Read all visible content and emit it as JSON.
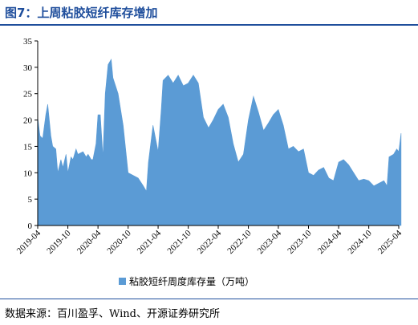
{
  "title": "图7：上周粘胶短纤库存增加",
  "source": "数据来源：百川盈孚、Wind、开源证券研究所",
  "colors": {
    "accent": "#1f4e9c",
    "area": "#5b9bd5",
    "axis": "#000000"
  },
  "chart_data": {
    "type": "area",
    "title": "图7：上周粘胶短纤库存增加",
    "xlabel": "",
    "ylabel": "",
    "ylim": [
      0,
      35
    ],
    "yticks": [
      "0",
      "5",
      "10",
      "15",
      "20",
      "25",
      "30",
      "35"
    ],
    "xticks": [
      "2019-04",
      "2019-10",
      "2020-04",
      "2020-10",
      "2021-04",
      "2021-10",
      "2022-04",
      "2022-10",
      "2023-04",
      "2023-10",
      "2024-04",
      "2024-10",
      "2025-04"
    ],
    "xlim": [
      "2019-04",
      "2025-04"
    ],
    "grid": false,
    "legend": "bottom",
    "series": [
      {
        "name": "粘胶短纤周度库存量（万吨）",
        "points": [
          [
            "2019-04",
            20.5
          ],
          [
            "2019-04-15",
            17.0
          ],
          [
            "2019-05",
            16.5
          ],
          [
            "2019-05-20",
            21.0
          ],
          [
            "2019-06",
            23.0
          ],
          [
            "2019-06-20",
            17.0
          ],
          [
            "2019-07",
            15.0
          ],
          [
            "2019-07-20",
            14.5
          ],
          [
            "2019-08",
            10.0
          ],
          [
            "2019-08-20",
            12.5
          ],
          [
            "2019-09",
            11.0
          ],
          [
            "2019-09-20",
            13.5
          ],
          [
            "2019-10",
            10.0
          ],
          [
            "2019-10-20",
            13.0
          ],
          [
            "2019-11",
            12.5
          ],
          [
            "2019-11-20",
            14.5
          ],
          [
            "2019-12",
            13.5
          ],
          [
            "2020-01",
            14.0
          ],
          [
            "2020-01-20",
            13.0
          ],
          [
            "2020-02",
            13.5
          ],
          [
            "2020-02-20",
            12.5
          ],
          [
            "2020-03",
            12.5
          ],
          [
            "2020-03-20",
            15.5
          ],
          [
            "2020-04",
            21.0
          ],
          [
            "2020-04-15",
            21.0
          ],
          [
            "2020-05",
            13.0
          ],
          [
            "2020-05-15",
            25.0
          ],
          [
            "2020-06",
            30.5
          ],
          [
            "2020-06-20",
            31.5
          ],
          [
            "2020-07",
            28.0
          ],
          [
            "2020-08",
            25.0
          ],
          [
            "2020-09",
            19.0
          ],
          [
            "2020-10",
            10.0
          ],
          [
            "2020-11",
            9.5
          ],
          [
            "2020-12",
            9.0
          ],
          [
            "2021-01",
            7.5
          ],
          [
            "2021-01-20",
            6.5
          ],
          [
            "2021-02",
            12.0
          ],
          [
            "2021-03",
            19.0
          ],
          [
            "2021-04",
            14.0
          ],
          [
            "2021-04-20",
            22.0
          ],
          [
            "2021-05",
            27.5
          ],
          [
            "2021-06",
            28.5
          ],
          [
            "2021-07",
            27.0
          ],
          [
            "2021-08",
            28.5
          ],
          [
            "2021-09",
            26.5
          ],
          [
            "2021-10",
            27.0
          ],
          [
            "2021-11",
            28.5
          ],
          [
            "2021-12",
            27.0
          ],
          [
            "2022-01",
            20.5
          ],
          [
            "2022-02",
            18.5
          ],
          [
            "2022-03",
            20.0
          ],
          [
            "2022-04",
            22.0
          ],
          [
            "2022-05",
            23.0
          ],
          [
            "2022-06",
            20.5
          ],
          [
            "2022-07",
            15.5
          ],
          [
            "2022-08",
            12.0
          ],
          [
            "2022-09",
            13.5
          ],
          [
            "2022-10",
            20.0
          ],
          [
            "2022-11",
            24.5
          ],
          [
            "2022-12",
            21.5
          ],
          [
            "2023-01",
            18.0
          ],
          [
            "2023-02",
            19.5
          ],
          [
            "2023-03",
            21.0
          ],
          [
            "2023-04",
            22.0
          ],
          [
            "2023-05",
            19.0
          ],
          [
            "2023-06",
            14.5
          ],
          [
            "2023-07",
            15.0
          ],
          [
            "2023-08",
            14.0
          ],
          [
            "2023-09",
            14.5
          ],
          [
            "2023-10",
            10.0
          ],
          [
            "2023-11",
            9.5
          ],
          [
            "2023-12",
            10.5
          ],
          [
            "2024-01",
            11.0
          ],
          [
            "2024-02",
            9.0
          ],
          [
            "2024-03",
            8.5
          ],
          [
            "2024-04",
            12.0
          ],
          [
            "2024-05",
            12.5
          ],
          [
            "2024-06",
            11.5
          ],
          [
            "2024-07",
            10.0
          ],
          [
            "2024-08",
            8.5
          ],
          [
            "2024-09",
            8.8
          ],
          [
            "2024-10",
            8.5
          ],
          [
            "2024-11",
            7.5
          ],
          [
            "2024-12",
            8.0
          ],
          [
            "2025-01",
            8.5
          ],
          [
            "2025-01-20",
            7.5
          ],
          [
            "2025-02",
            13.0
          ],
          [
            "2025-03",
            13.5
          ],
          [
            "2025-03-20",
            14.5
          ],
          [
            "2025-04",
            14.0
          ],
          [
            "2025-04-15",
            17.5
          ]
        ]
      }
    ]
  }
}
